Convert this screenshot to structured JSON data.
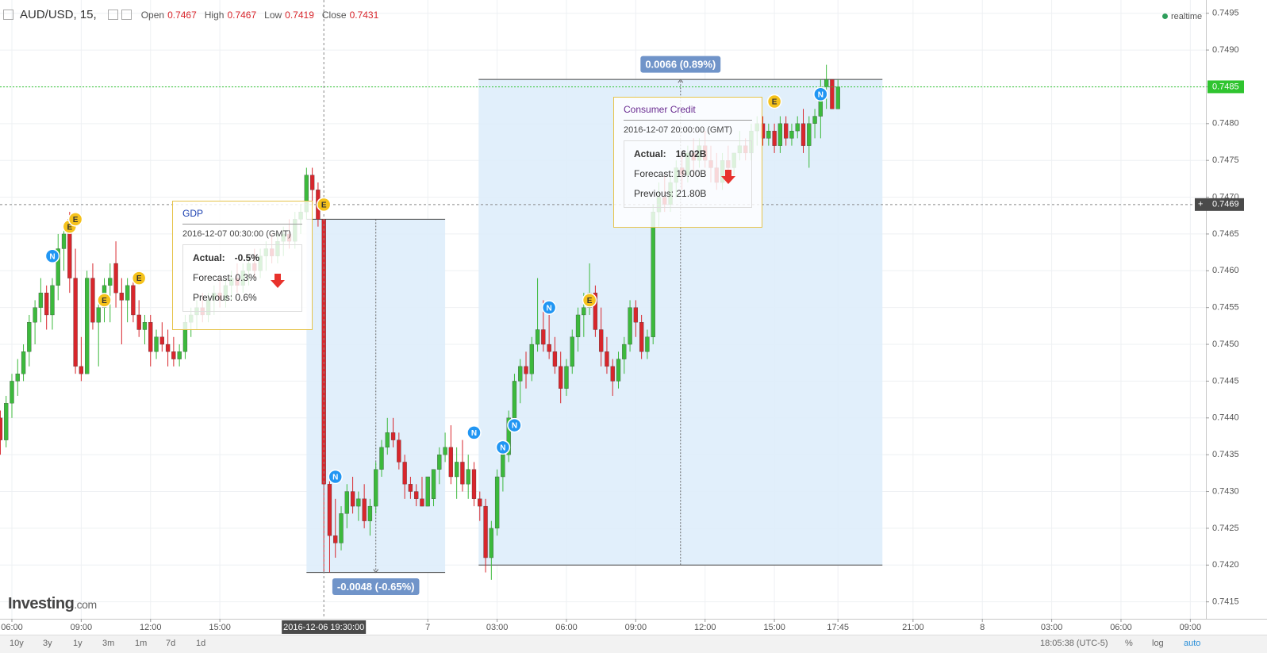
{
  "chart_data": {
    "type": "candlestick",
    "title": "AUD/USD, 15,",
    "legend_items": [
      {
        "label": "Open",
        "value": 0.7467
      },
      {
        "label": "High",
        "value": 0.7467
      },
      {
        "label": "Low",
        "value": 0.7419
      },
      {
        "label": "Close",
        "value": 0.7431
      }
    ],
    "status": "realtime",
    "up_color": "#3cb93c",
    "down_color": "#d8262c",
    "grid": true,
    "xlim": [
      -2.06,
      206.7
    ],
    "ylim": [
      0.74127,
      0.74968
    ],
    "xticks": [
      {
        "value": 0,
        "label": "06:00"
      },
      {
        "value": 12,
        "label": "09:00"
      },
      {
        "value": 24,
        "label": "12:00"
      },
      {
        "value": 36,
        "label": "15:00"
      },
      {
        "value": 72,
        "label": "7"
      },
      {
        "value": 84,
        "label": "03:00"
      },
      {
        "value": 96,
        "label": "06:00"
      },
      {
        "value": 108,
        "label": "09:00"
      },
      {
        "value": 120,
        "label": "12:00"
      },
      {
        "value": 132,
        "label": "15:00"
      },
      {
        "value": 143,
        "label": "17:45"
      },
      {
        "value": 156,
        "label": "21:00"
      },
      {
        "value": 168,
        "label": "8"
      },
      {
        "value": 180,
        "label": "03:00"
      },
      {
        "value": 192,
        "label": "06:00"
      },
      {
        "value": 204,
        "label": "09:00"
      }
    ],
    "yticks": [
      0.7415,
      {
        "value": 0.742,
        "label": "0.7420"
      },
      0.7425,
      {
        "value": 0.743,
        "label": "0.7430"
      },
      0.7435,
      {
        "value": 0.744,
        "label": "0.7440"
      },
      0.7445,
      {
        "value": 0.745,
        "label": "0.7450"
      },
      0.7455,
      {
        "value": 0.746,
        "label": "0.7460"
      },
      0.7465,
      {
        "value": 0.747,
        "label": "0.7470"
      },
      0.7475,
      {
        "value": 0.748,
        "label": "0.7480"
      },
      0.7485,
      {
        "value": 0.749,
        "label": "0.7490"
      },
      0.7495
    ],
    "x": [
      -2,
      -1,
      0,
      1,
      2,
      3,
      4,
      5,
      6,
      7,
      8,
      9,
      10,
      11,
      12,
      13,
      14,
      15,
      16,
      17,
      18,
      19,
      20,
      21,
      22,
      23,
      24,
      25,
      26,
      27,
      28,
      29,
      30,
      31,
      32,
      33,
      34,
      35,
      36,
      37,
      38,
      39,
      40,
      41,
      42,
      43,
      44,
      45,
      46,
      47,
      48,
      49,
      50,
      51,
      52,
      53,
      54,
      55,
      56,
      57,
      58,
      59,
      60,
      61,
      62,
      63,
      64,
      65,
      66,
      67,
      68,
      69,
      70,
      71,
      72,
      73,
      74,
      75,
      76,
      77,
      78,
      79,
      80,
      81,
      82,
      83,
      84,
      85,
      86,
      87,
      88,
      89,
      90,
      91,
      92,
      93,
      94,
      95,
      96,
      97,
      98,
      99,
      100,
      101,
      102,
      103,
      104,
      105,
      106,
      107,
      108,
      109,
      110,
      111,
      112,
      113,
      114,
      115,
      116,
      117,
      118,
      119,
      120,
      121,
      122,
      123,
      124,
      125,
      126,
      127,
      128,
      129,
      130,
      131,
      132,
      133,
      134,
      135,
      136,
      137,
      138,
      139,
      140,
      141,
      142,
      143
    ],
    "candles": [
      [
        0.744,
        0.7441,
        0.7435,
        0.7437
      ],
      [
        0.7437,
        0.7443,
        0.7436,
        0.7442
      ],
      [
        0.7442,
        0.7446,
        0.744,
        0.7445
      ],
      [
        0.7445,
        0.7448,
        0.7443,
        0.7446
      ],
      [
        0.7446,
        0.745,
        0.7445,
        0.7449
      ],
      [
        0.7449,
        0.7454,
        0.7447,
        0.7453
      ],
      [
        0.7453,
        0.7456,
        0.745,
        0.7455
      ],
      [
        0.7455,
        0.7459,
        0.7453,
        0.7457
      ],
      [
        0.7457,
        0.7458,
        0.7452,
        0.7454
      ],
      [
        0.7454,
        0.7459,
        0.7452,
        0.7458
      ],
      [
        0.7458,
        0.7465,
        0.7456,
        0.7463
      ],
      [
        0.7463,
        0.7466,
        0.746,
        0.7465
      ],
      [
        0.7467,
        0.7468,
        0.7457,
        0.7459
      ],
      [
        0.7459,
        0.7463,
        0.7446,
        0.7447
      ],
      [
        0.7447,
        0.7451,
        0.7445,
        0.7446
      ],
      [
        0.7446,
        0.746,
        0.7446,
        0.7459
      ],
      [
        0.7459,
        0.7461,
        0.7452,
        0.7453
      ],
      [
        0.7453,
        0.7456,
        0.7447,
        0.7455
      ],
      [
        0.7455,
        0.7459,
        0.7453,
        0.7458
      ],
      [
        0.7458,
        0.7461,
        0.7453,
        0.7459
      ],
      [
        0.7461,
        0.7464,
        0.7455,
        0.7457
      ],
      [
        0.7457,
        0.7459,
        0.745,
        0.7456
      ],
      [
        0.7456,
        0.7459,
        0.7453,
        0.7458
      ],
      [
        0.7458,
        0.7459,
        0.7453,
        0.7454
      ],
      [
        0.7454,
        0.7456,
        0.7451,
        0.7452
      ],
      [
        0.7452,
        0.7454,
        0.745,
        0.7453
      ],
      [
        0.7453,
        0.7454,
        0.7447,
        0.7449
      ],
      [
        0.7449,
        0.7452,
        0.7448,
        0.7451
      ],
      [
        0.7451,
        0.7453,
        0.7449,
        0.745
      ],
      [
        0.745,
        0.7452,
        0.7447,
        0.7449
      ],
      [
        0.7449,
        0.7451,
        0.7447,
        0.7448
      ],
      [
        0.7448,
        0.745,
        0.7447,
        0.7449
      ],
      [
        0.7449,
        0.7454,
        0.7448,
        0.7453
      ],
      [
        0.7453,
        0.7455,
        0.7451,
        0.7454
      ],
      [
        0.7454,
        0.7456,
        0.7452,
        0.7455
      ],
      [
        0.7455,
        0.7457,
        0.7453,
        0.7454
      ],
      [
        0.7454,
        0.7457,
        0.7453,
        0.7456
      ],
      [
        0.7456,
        0.7458,
        0.7454,
        0.7457
      ],
      [
        0.7457,
        0.7459,
        0.7455,
        0.7456
      ],
      [
        0.7456,
        0.7459,
        0.7455,
        0.7458
      ],
      [
        0.7458,
        0.746,
        0.7456,
        0.7459
      ],
      [
        0.7459,
        0.7461,
        0.7457,
        0.7458
      ],
      [
        0.7458,
        0.7461,
        0.7457,
        0.746
      ],
      [
        0.746,
        0.7462,
        0.7458,
        0.7461
      ],
      [
        0.7461,
        0.7463,
        0.7459,
        0.746
      ],
      [
        0.746,
        0.7463,
        0.7459,
        0.7462
      ],
      [
        0.7462,
        0.7464,
        0.746,
        0.7463
      ],
      [
        0.7463,
        0.7465,
        0.7461,
        0.7462
      ],
      [
        0.7462,
        0.7465,
        0.7461,
        0.7464
      ],
      [
        0.7464,
        0.7466,
        0.7462,
        0.7465
      ],
      [
        0.7465,
        0.7467,
        0.7463,
        0.7464
      ],
      [
        0.7464,
        0.7468,
        0.7463,
        0.7467
      ],
      [
        0.7467,
        0.7469,
        0.7465,
        0.7468
      ],
      [
        0.7468,
        0.7474,
        0.7467,
        0.7473
      ],
      [
        0.7473,
        0.7474,
        0.7469,
        0.7471
      ],
      [
        0.7471,
        0.7472,
        0.7466,
        0.7467
      ],
      [
        0.7467,
        0.7467,
        0.7419,
        0.7431
      ],
      [
        0.7431,
        0.7432,
        0.7419,
        0.7424
      ],
      [
        0.7424,
        0.7429,
        0.7421,
        0.7423
      ],
      [
        0.7423,
        0.7428,
        0.7422,
        0.7427
      ],
      [
        0.7427,
        0.7431,
        0.7425,
        0.743
      ],
      [
        0.743,
        0.7432,
        0.7427,
        0.7428
      ],
      [
        0.7428,
        0.743,
        0.7426,
        0.7429
      ],
      [
        0.7429,
        0.7431,
        0.7425,
        0.7426
      ],
      [
        0.7426,
        0.7429,
        0.7424,
        0.7428
      ],
      [
        0.7428,
        0.7434,
        0.7427,
        0.7433
      ],
      [
        0.7433,
        0.7437,
        0.7432,
        0.7436
      ],
      [
        0.7436,
        0.744,
        0.7435,
        0.7438
      ],
      [
        0.7438,
        0.744,
        0.7436,
        0.7437
      ],
      [
        0.7437,
        0.7438,
        0.7433,
        0.7434
      ],
      [
        0.7434,
        0.7435,
        0.7429,
        0.7431
      ],
      [
        0.7431,
        0.7432,
        0.7429,
        0.743
      ],
      [
        0.743,
        0.7431,
        0.7428,
        0.7429
      ],
      [
        0.7429,
        0.7432,
        0.7428,
        0.7428
      ],
      [
        0.7428,
        0.7432,
        0.7428,
        0.7432
      ],
      [
        0.7429,
        0.7433,
        0.7428,
        0.7433
      ],
      [
        0.7433,
        0.7436,
        0.7431,
        0.7435
      ],
      [
        0.7435,
        0.7438,
        0.7434,
        0.7436
      ],
      [
        0.7436,
        0.7439,
        0.7431,
        0.7432
      ],
      [
        0.7432,
        0.7436,
        0.7429,
        0.7434
      ],
      [
        0.7434,
        0.7437,
        0.743,
        0.7431
      ],
      [
        0.7431,
        0.7435,
        0.7429,
        0.7433
      ],
      [
        0.7433,
        0.7434,
        0.7428,
        0.7429
      ],
      [
        0.7429,
        0.743,
        0.7426,
        0.7428
      ],
      [
        0.7428,
        0.7429,
        0.7419,
        0.7421
      ],
      [
        0.7421,
        0.7426,
        0.7418,
        0.7425
      ],
      [
        0.7425,
        0.7433,
        0.7424,
        0.7432
      ],
      [
        0.7432,
        0.7436,
        0.743,
        0.7435
      ],
      [
        0.7435,
        0.7441,
        0.7434,
        0.744
      ],
      [
        0.744,
        0.7446,
        0.7439,
        0.7445
      ],
      [
        0.7445,
        0.7448,
        0.7442,
        0.7447
      ],
      [
        0.7447,
        0.7449,
        0.7444,
        0.7446
      ],
      [
        0.7446,
        0.7451,
        0.7445,
        0.745
      ],
      [
        0.745,
        0.7459,
        0.7449,
        0.7452
      ],
      [
        0.7452,
        0.7456,
        0.7449,
        0.745
      ],
      [
        0.745,
        0.7454,
        0.7448,
        0.7449
      ],
      [
        0.7449,
        0.7451,
        0.7446,
        0.7447
      ],
      [
        0.7447,
        0.7449,
        0.7442,
        0.7444
      ],
      [
        0.7444,
        0.7448,
        0.7443,
        0.7447
      ],
      [
        0.7447,
        0.7452,
        0.7446,
        0.7451
      ],
      [
        0.7451,
        0.7455,
        0.7449,
        0.7454
      ],
      [
        0.7454,
        0.7457,
        0.7451,
        0.7455
      ],
      [
        0.7455,
        0.7461,
        0.7454,
        0.7457
      ],
      [
        0.7457,
        0.7458,
        0.7451,
        0.7452
      ],
      [
        0.7452,
        0.7455,
        0.7447,
        0.7449
      ],
      [
        0.7449,
        0.7451,
        0.7446,
        0.7447
      ],
      [
        0.7447,
        0.7448,
        0.7443,
        0.7445
      ],
      [
        0.7445,
        0.7449,
        0.7444,
        0.7448
      ],
      [
        0.7448,
        0.7451,
        0.7446,
        0.745
      ],
      [
        0.745,
        0.7456,
        0.7449,
        0.7455
      ],
      [
        0.7455,
        0.7456,
        0.7451,
        0.7453
      ],
      [
        0.7453,
        0.7454,
        0.7448,
        0.7449
      ],
      [
        0.7449,
        0.7452,
        0.7448,
        0.7451
      ],
      [
        0.7451,
        0.7469,
        0.745,
        0.7468
      ],
      [
        0.7468,
        0.7472,
        0.7466,
        0.747
      ],
      [
        0.747,
        0.7473,
        0.7468,
        0.7469
      ],
      [
        0.7469,
        0.7473,
        0.7468,
        0.7472
      ],
      [
        0.7472,
        0.7475,
        0.747,
        0.7474
      ],
      [
        0.7474,
        0.7476,
        0.7471,
        0.7473
      ],
      [
        0.7473,
        0.7477,
        0.7472,
        0.7476
      ],
      [
        0.7476,
        0.7478,
        0.7473,
        0.7475
      ],
      [
        0.7475,
        0.7478,
        0.7474,
        0.7477
      ],
      [
        0.7477,
        0.7479,
        0.7474,
        0.7475
      ],
      [
        0.7475,
        0.7477,
        0.7472,
        0.7474
      ],
      [
        0.7474,
        0.7476,
        0.7471,
        0.7472
      ],
      [
        0.7472,
        0.7476,
        0.7471,
        0.7475
      ],
      [
        0.7475,
        0.7477,
        0.7473,
        0.7474
      ],
      [
        0.7474,
        0.7476,
        0.7473,
        0.7476
      ],
      [
        0.7476,
        0.7479,
        0.7475,
        0.7477
      ],
      [
        0.7477,
        0.7478,
        0.7475,
        0.7476
      ],
      [
        0.7476,
        0.748,
        0.7475,
        0.7479
      ],
      [
        0.7479,
        0.7481,
        0.7477,
        0.748
      ],
      [
        0.748,
        0.7481,
        0.7477,
        0.7478
      ],
      [
        0.7478,
        0.748,
        0.7477,
        0.7479
      ],
      [
        0.7479,
        0.748,
        0.7476,
        0.7477
      ],
      [
        0.7477,
        0.7481,
        0.7476,
        0.748
      ],
      [
        0.748,
        0.7481,
        0.7477,
        0.7478
      ],
      [
        0.7478,
        0.748,
        0.7477,
        0.7479
      ],
      [
        0.7479,
        0.7481,
        0.7478,
        0.748
      ],
      [
        0.748,
        0.7482,
        0.7476,
        0.7477
      ],
      [
        0.7477,
        0.7481,
        0.7474,
        0.748
      ],
      [
        0.748,
        0.7482,
        0.7478,
        0.7481
      ],
      [
        0.7481,
        0.7486,
        0.7478,
        0.7485
      ],
      [
        0.7485,
        0.7488,
        0.7482,
        0.7486
      ],
      [
        0.7486,
        0.7486,
        0.7482,
        0.7482
      ],
      [
        0.7482,
        0.7486,
        0.7482,
        0.7485
      ]
    ],
    "events": [
      {
        "label": "N",
        "x": 7,
        "y": 0.7462
      },
      {
        "label": "E",
        "x": 10,
        "y": 0.7466
      },
      {
        "label": "E",
        "x": 11,
        "y": 0.7467
      },
      {
        "label": "E",
        "x": 16,
        "y": 0.7456
      },
      {
        "label": "E",
        "x": 22,
        "y": 0.7459
      },
      {
        "label": "E",
        "x": 54,
        "y": 0.7469
      },
      {
        "label": "N",
        "x": 56,
        "y": 0.7432
      },
      {
        "label": "N",
        "x": 80,
        "y": 0.7438
      },
      {
        "label": "N",
        "x": 85,
        "y": 0.7436
      },
      {
        "label": "N",
        "x": 87,
        "y": 0.7439
      },
      {
        "label": "N",
        "x": 93,
        "y": 0.7455
      },
      {
        "label": "E",
        "x": 100,
        "y": 0.7456
      },
      {
        "label": "E",
        "x": 132,
        "y": 0.7483
      },
      {
        "label": "N",
        "x": 140,
        "y": 0.7484
      }
    ],
    "ranges": [
      {
        "x": [
          51,
          75
        ],
        "y": [
          0.7467,
          0.7419
        ],
        "label": "-0.0048 (-0.65%)"
      },
      {
        "x": [
          80.8,
          150.7
        ],
        "y": [
          0.742,
          0.7486
        ],
        "label": "0.0066 (0.89%)"
      }
    ],
    "crosshair": {
      "x": 54,
      "x_label": "2016-12-06 19:30:00",
      "y": 0.7469
    },
    "last_price": {
      "value": 0.7485,
      "color": "#2fc42f"
    }
  },
  "tooltips": [
    {
      "title": "GDP",
      "date": "2016-12-07 00:30:00 (GMT)",
      "rows": [
        [
          "Actual:",
          "-0.5%"
        ],
        [
          "Forecast:",
          "0.3%"
        ],
        [
          "Previous:",
          "0.6%"
        ]
      ]
    },
    {
      "title": "Consumer Credit",
      "date": "2016-12-07 20:00:00 (GMT)",
      "rows": [
        [
          "Actual:",
          "16.02B"
        ],
        [
          "Forecast:",
          "19.00B"
        ],
        [
          "Previous:",
          "21.80B"
        ]
      ]
    }
  ],
  "toolbar": {
    "periods": [
      "10y",
      "3y",
      "1y",
      "3m",
      "1m",
      "7d",
      "1d"
    ],
    "clock": "18:05:38 (UTC-5)",
    "scale_buttons": [
      "%",
      "log",
      "auto"
    ]
  },
  "logo": {
    "name": "Investing",
    "suffix": ".com"
  }
}
